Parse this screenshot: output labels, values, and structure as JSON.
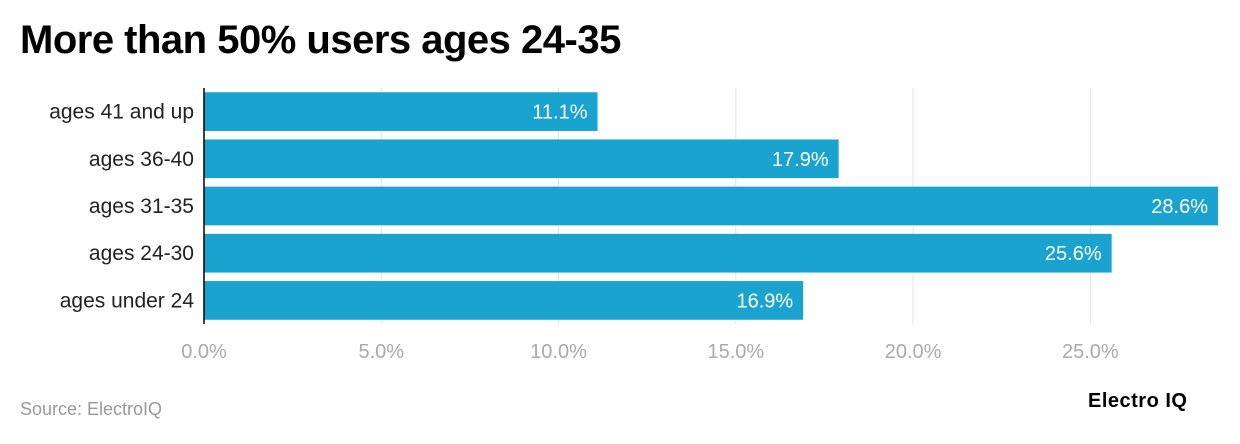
{
  "chart_data": {
    "type": "bar",
    "orientation": "horizontal",
    "title": "More than 50% users ages 24-35",
    "categories": [
      "ages 41 and up",
      "ages 36-40",
      "ages 31-35",
      "ages 24-30",
      "ages under 24"
    ],
    "values": [
      11.1,
      17.9,
      28.6,
      25.6,
      16.9
    ],
    "value_labels": [
      "11.1%",
      "17.9%",
      "28.6%",
      "25.6%",
      "16.9%"
    ],
    "xlim": [
      0,
      28.6
    ],
    "x_ticks": [
      0,
      5,
      10,
      15,
      20,
      25
    ],
    "x_tick_labels": [
      "0.0%",
      "5.0%",
      "10.0%",
      "15.0%",
      "20.0%",
      "25.0%"
    ],
    "xlabel": "",
    "ylabel": "",
    "grid": true,
    "bar_color": "#1aa3cf"
  },
  "footer": {
    "source": "Source: ElectroIQ",
    "brand": "Electro IQ"
  }
}
